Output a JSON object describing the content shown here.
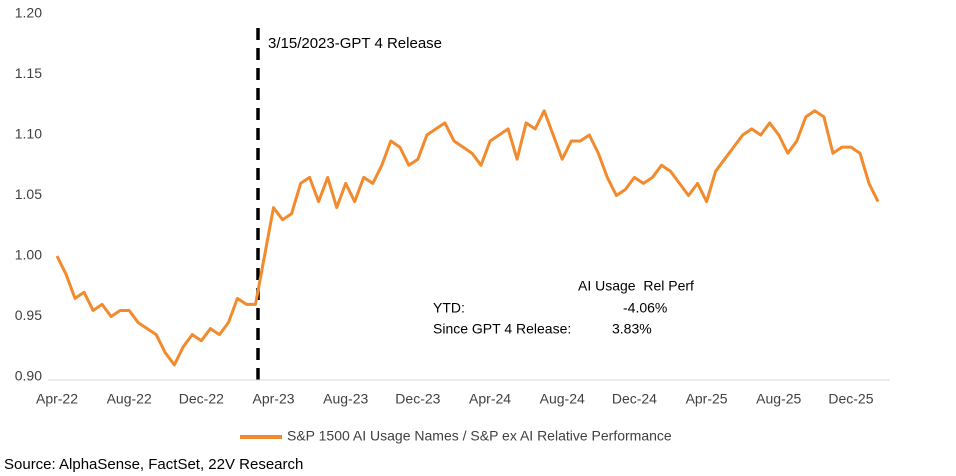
{
  "chart_data": {
    "type": "line",
    "categories": [
      "Apr-22",
      null,
      null,
      null,
      null,
      null,
      null,
      null,
      "Aug-22",
      null,
      null,
      null,
      null,
      null,
      null,
      null,
      "Dec-22",
      null,
      null,
      null,
      null,
      null,
      null,
      null,
      "Apr-23",
      null,
      null,
      null,
      null,
      null,
      null,
      null,
      "Aug-23",
      null,
      null,
      null,
      null,
      null,
      null,
      null,
      "Dec-23",
      null,
      null,
      null,
      null,
      null,
      null,
      null,
      "Apr-24",
      null,
      null,
      null,
      null,
      null,
      null,
      null,
      "Aug-24",
      null,
      null,
      null,
      null,
      null,
      null,
      null,
      "Dec-24",
      null,
      null,
      null,
      null,
      null,
      null,
      null,
      "Apr-25",
      null,
      null,
      null,
      null,
      null,
      null,
      null,
      "Aug-25",
      null,
      null,
      null,
      null,
      null,
      null,
      null,
      "Dec-25",
      null,
      null,
      null
    ],
    "series": [
      {
        "name": "S&P 1500 AI Usage Names / S&P ex AI Relative Performance",
        "color": "#f28a2e",
        "values": [
          1.0,
          0.985,
          0.965,
          0.97,
          0.955,
          0.96,
          0.95,
          0.955,
          0.955,
          0.945,
          0.94,
          0.935,
          0.92,
          0.91,
          0.925,
          0.935,
          0.93,
          0.94,
          0.935,
          0.945,
          0.965,
          0.96,
          0.96,
          1.0,
          1.04,
          1.03,
          1.035,
          1.06,
          1.065,
          1.045,
          1.065,
          1.04,
          1.06,
          1.045,
          1.065,
          1.06,
          1.075,
          1.095,
          1.09,
          1.075,
          1.08,
          1.1,
          1.105,
          1.11,
          1.095,
          1.09,
          1.085,
          1.075,
          1.095,
          1.1,
          1.105,
          1.08,
          1.11,
          1.105,
          1.12,
          1.1,
          1.08,
          1.095,
          1.095,
          1.1,
          1.085,
          1.065,
          1.05,
          1.055,
          1.065,
          1.06,
          1.065,
          1.075,
          1.07,
          1.06,
          1.05,
          1.06,
          1.045,
          1.07,
          1.08,
          1.09,
          1.1,
          1.105,
          1.1,
          1.11,
          1.1,
          1.085,
          1.095,
          1.115,
          1.12,
          1.115,
          1.085,
          1.09,
          1.09,
          1.085,
          1.06,
          1.045
        ]
      }
    ],
    "ylim": [
      0.9,
      1.2
    ],
    "yticks": [
      {
        "value": 0.9,
        "label": "0.90"
      },
      {
        "value": 0.95,
        "label": "0.95"
      },
      {
        "value": 1.0,
        "label": "1.00"
      },
      {
        "value": 1.05,
        "label": "1.05"
      },
      {
        "value": 1.1,
        "label": "1.10"
      },
      {
        "value": 1.15,
        "label": "1.15"
      },
      {
        "value": 1.2,
        "label": "1.20"
      }
    ],
    "annotation": "3/15/2023-GPT 4 Release",
    "source": "Source: AlphaSense, FactSet, 22V Research"
  },
  "stats_table": {
    "header": "AI Usage  Rel Perf",
    "rows": [
      [
        "YTD:",
        "-4.06%"
      ],
      [
        "Since GPT 4 Release:",
        "3.83%"
      ]
    ]
  }
}
